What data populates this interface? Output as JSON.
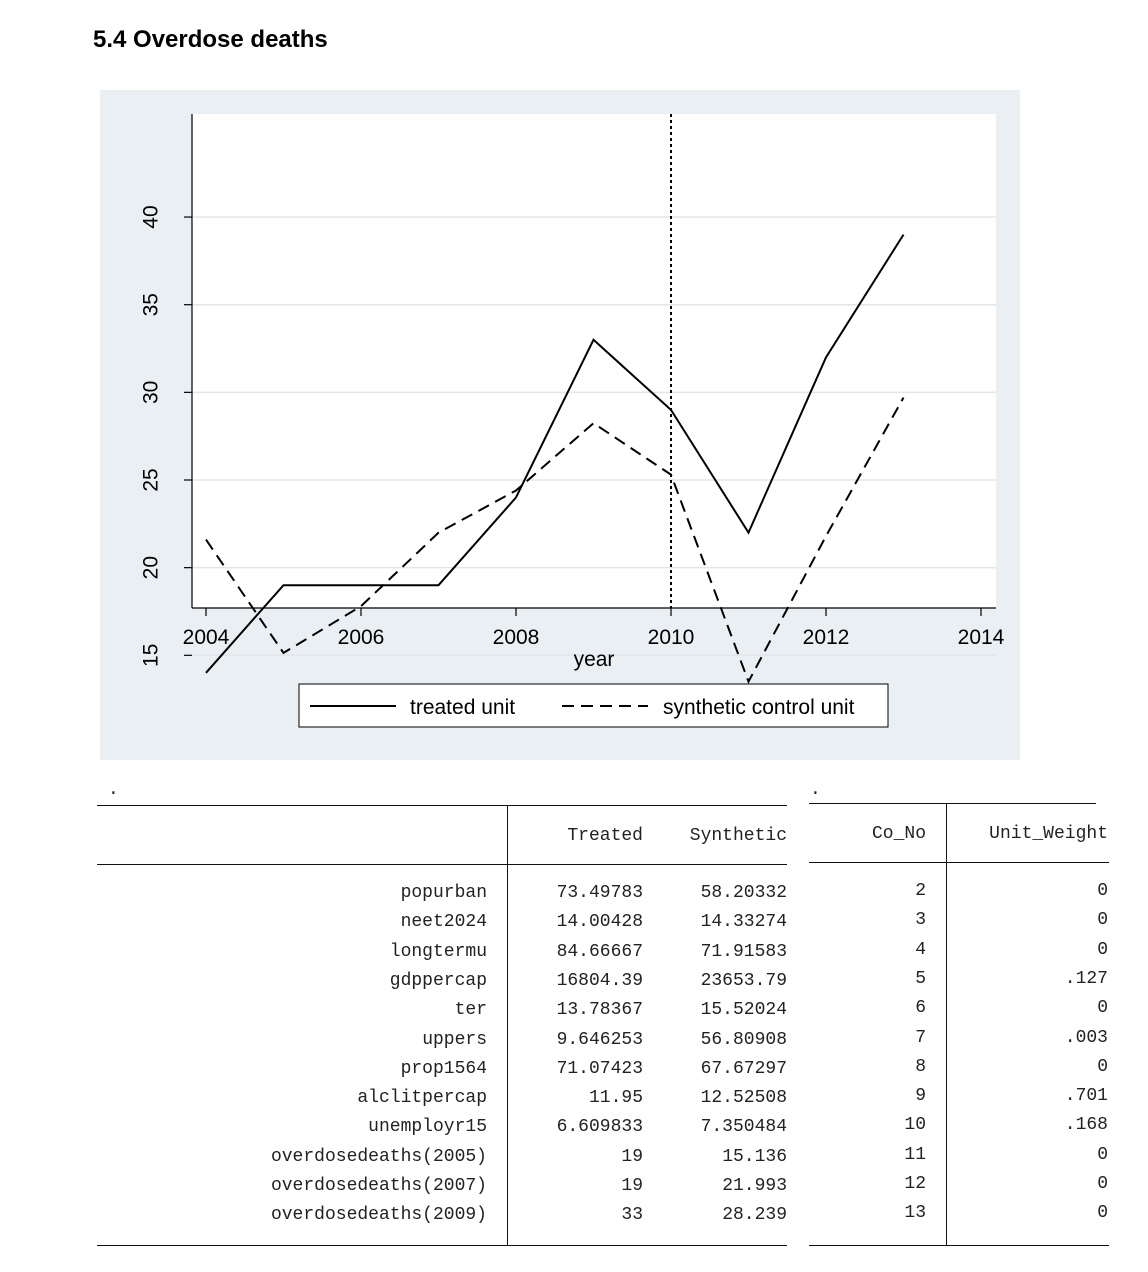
{
  "page": {
    "title": "5.4 Overdose deaths"
  },
  "chart_data": {
    "type": "line",
    "title": "",
    "xlabel": "year",
    "ylabel": "",
    "xlim": [
      2004,
      2014
    ],
    "ylim": [
      13,
      41
    ],
    "x_ticks": [
      2004,
      2006,
      2008,
      2010,
      2012,
      2014
    ],
    "y_ticks": [
      15,
      20,
      25,
      30,
      35,
      40
    ],
    "grid": true,
    "legend_position": "bottom",
    "vertical_line": {
      "x": 2010,
      "style": "dotted"
    },
    "x": [
      2004,
      2005,
      2006,
      2007,
      2008,
      2009,
      2010,
      2011,
      2012,
      2013
    ],
    "series": [
      {
        "name": "treated unit",
        "style": "solid",
        "color": "#000000",
        "values": [
          14,
          19,
          19,
          19,
          24,
          33,
          29,
          22,
          32,
          39
        ]
      },
      {
        "name": "synthetic control unit",
        "style": "dashed",
        "color": "#000000",
        "values": [
          21.6,
          15.136,
          17.8,
          21.993,
          24.4,
          28.239,
          25.3,
          13.5,
          21.8,
          29.7
        ]
      }
    ]
  },
  "table1": {
    "dot": ".",
    "headers": [
      "Treated",
      "Synthetic"
    ],
    "rows": [
      {
        "label": "popurban",
        "treated": "73.49783",
        "synthetic": "58.20332"
      },
      {
        "label": "neet2024",
        "treated": "14.00428",
        "synthetic": "14.33274"
      },
      {
        "label": "longtermu",
        "treated": "84.66667",
        "synthetic": "71.91583"
      },
      {
        "label": "gdppercap",
        "treated": "16804.39",
        "synthetic": "23653.79"
      },
      {
        "label": "ter",
        "treated": "13.78367",
        "synthetic": "15.52024"
      },
      {
        "label": "uppers",
        "treated": "9.646253",
        "synthetic": "56.80908"
      },
      {
        "label": "prop1564",
        "treated": "71.07423",
        "synthetic": "67.67297"
      },
      {
        "label": "alclitpercap",
        "treated": "11.95",
        "synthetic": "12.52508"
      },
      {
        "label": "unemployr15",
        "treated": "6.609833",
        "synthetic": "7.350484"
      },
      {
        "label": "overdosedeaths(2005)",
        "treated": "19",
        "synthetic": "15.136"
      },
      {
        "label": "overdosedeaths(2007)",
        "treated": "19",
        "synthetic": "21.993"
      },
      {
        "label": "overdosedeaths(2009)",
        "treated": "33",
        "synthetic": "28.239"
      }
    ]
  },
  "table2": {
    "dot": ".",
    "headers": [
      "Co_No",
      "Unit_Weight"
    ],
    "rows": [
      {
        "co_no": "2",
        "weight": "0"
      },
      {
        "co_no": "3",
        "weight": "0"
      },
      {
        "co_no": "4",
        "weight": "0"
      },
      {
        "co_no": "5",
        "weight": ".127"
      },
      {
        "co_no": "6",
        "weight": "0"
      },
      {
        "co_no": "7",
        "weight": ".003"
      },
      {
        "co_no": "8",
        "weight": "0"
      },
      {
        "co_no": "9",
        "weight": ".701"
      },
      {
        "co_no": "10",
        "weight": ".168"
      },
      {
        "co_no": "11",
        "weight": "0"
      },
      {
        "co_no": "12",
        "weight": "0"
      },
      {
        "co_no": "13",
        "weight": "0"
      }
    ]
  }
}
